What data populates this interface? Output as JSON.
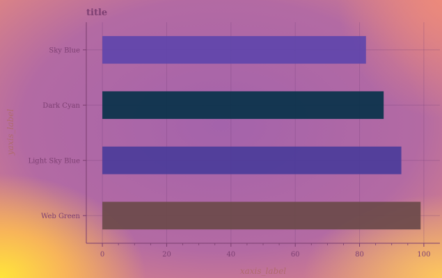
{
  "chart_data": {
    "type": "bar",
    "orientation": "horizontal",
    "title": "title",
    "xlabel": "xaxis_label",
    "ylabel": "yaxis_label",
    "categories": [
      "Web Green",
      "Light Sky Blue",
      "Dark Cyan",
      "Sky Blue"
    ],
    "values": [
      99,
      93,
      87.5,
      82
    ],
    "colors": [
      "#6b4a4a",
      "#4b3c9a",
      "#08324a",
      "#6045ab"
    ],
    "xlim": [
      -5,
      105
    ],
    "xticks": [
      0,
      20,
      40,
      60,
      80,
      100
    ],
    "grid": true,
    "legend": false
  }
}
